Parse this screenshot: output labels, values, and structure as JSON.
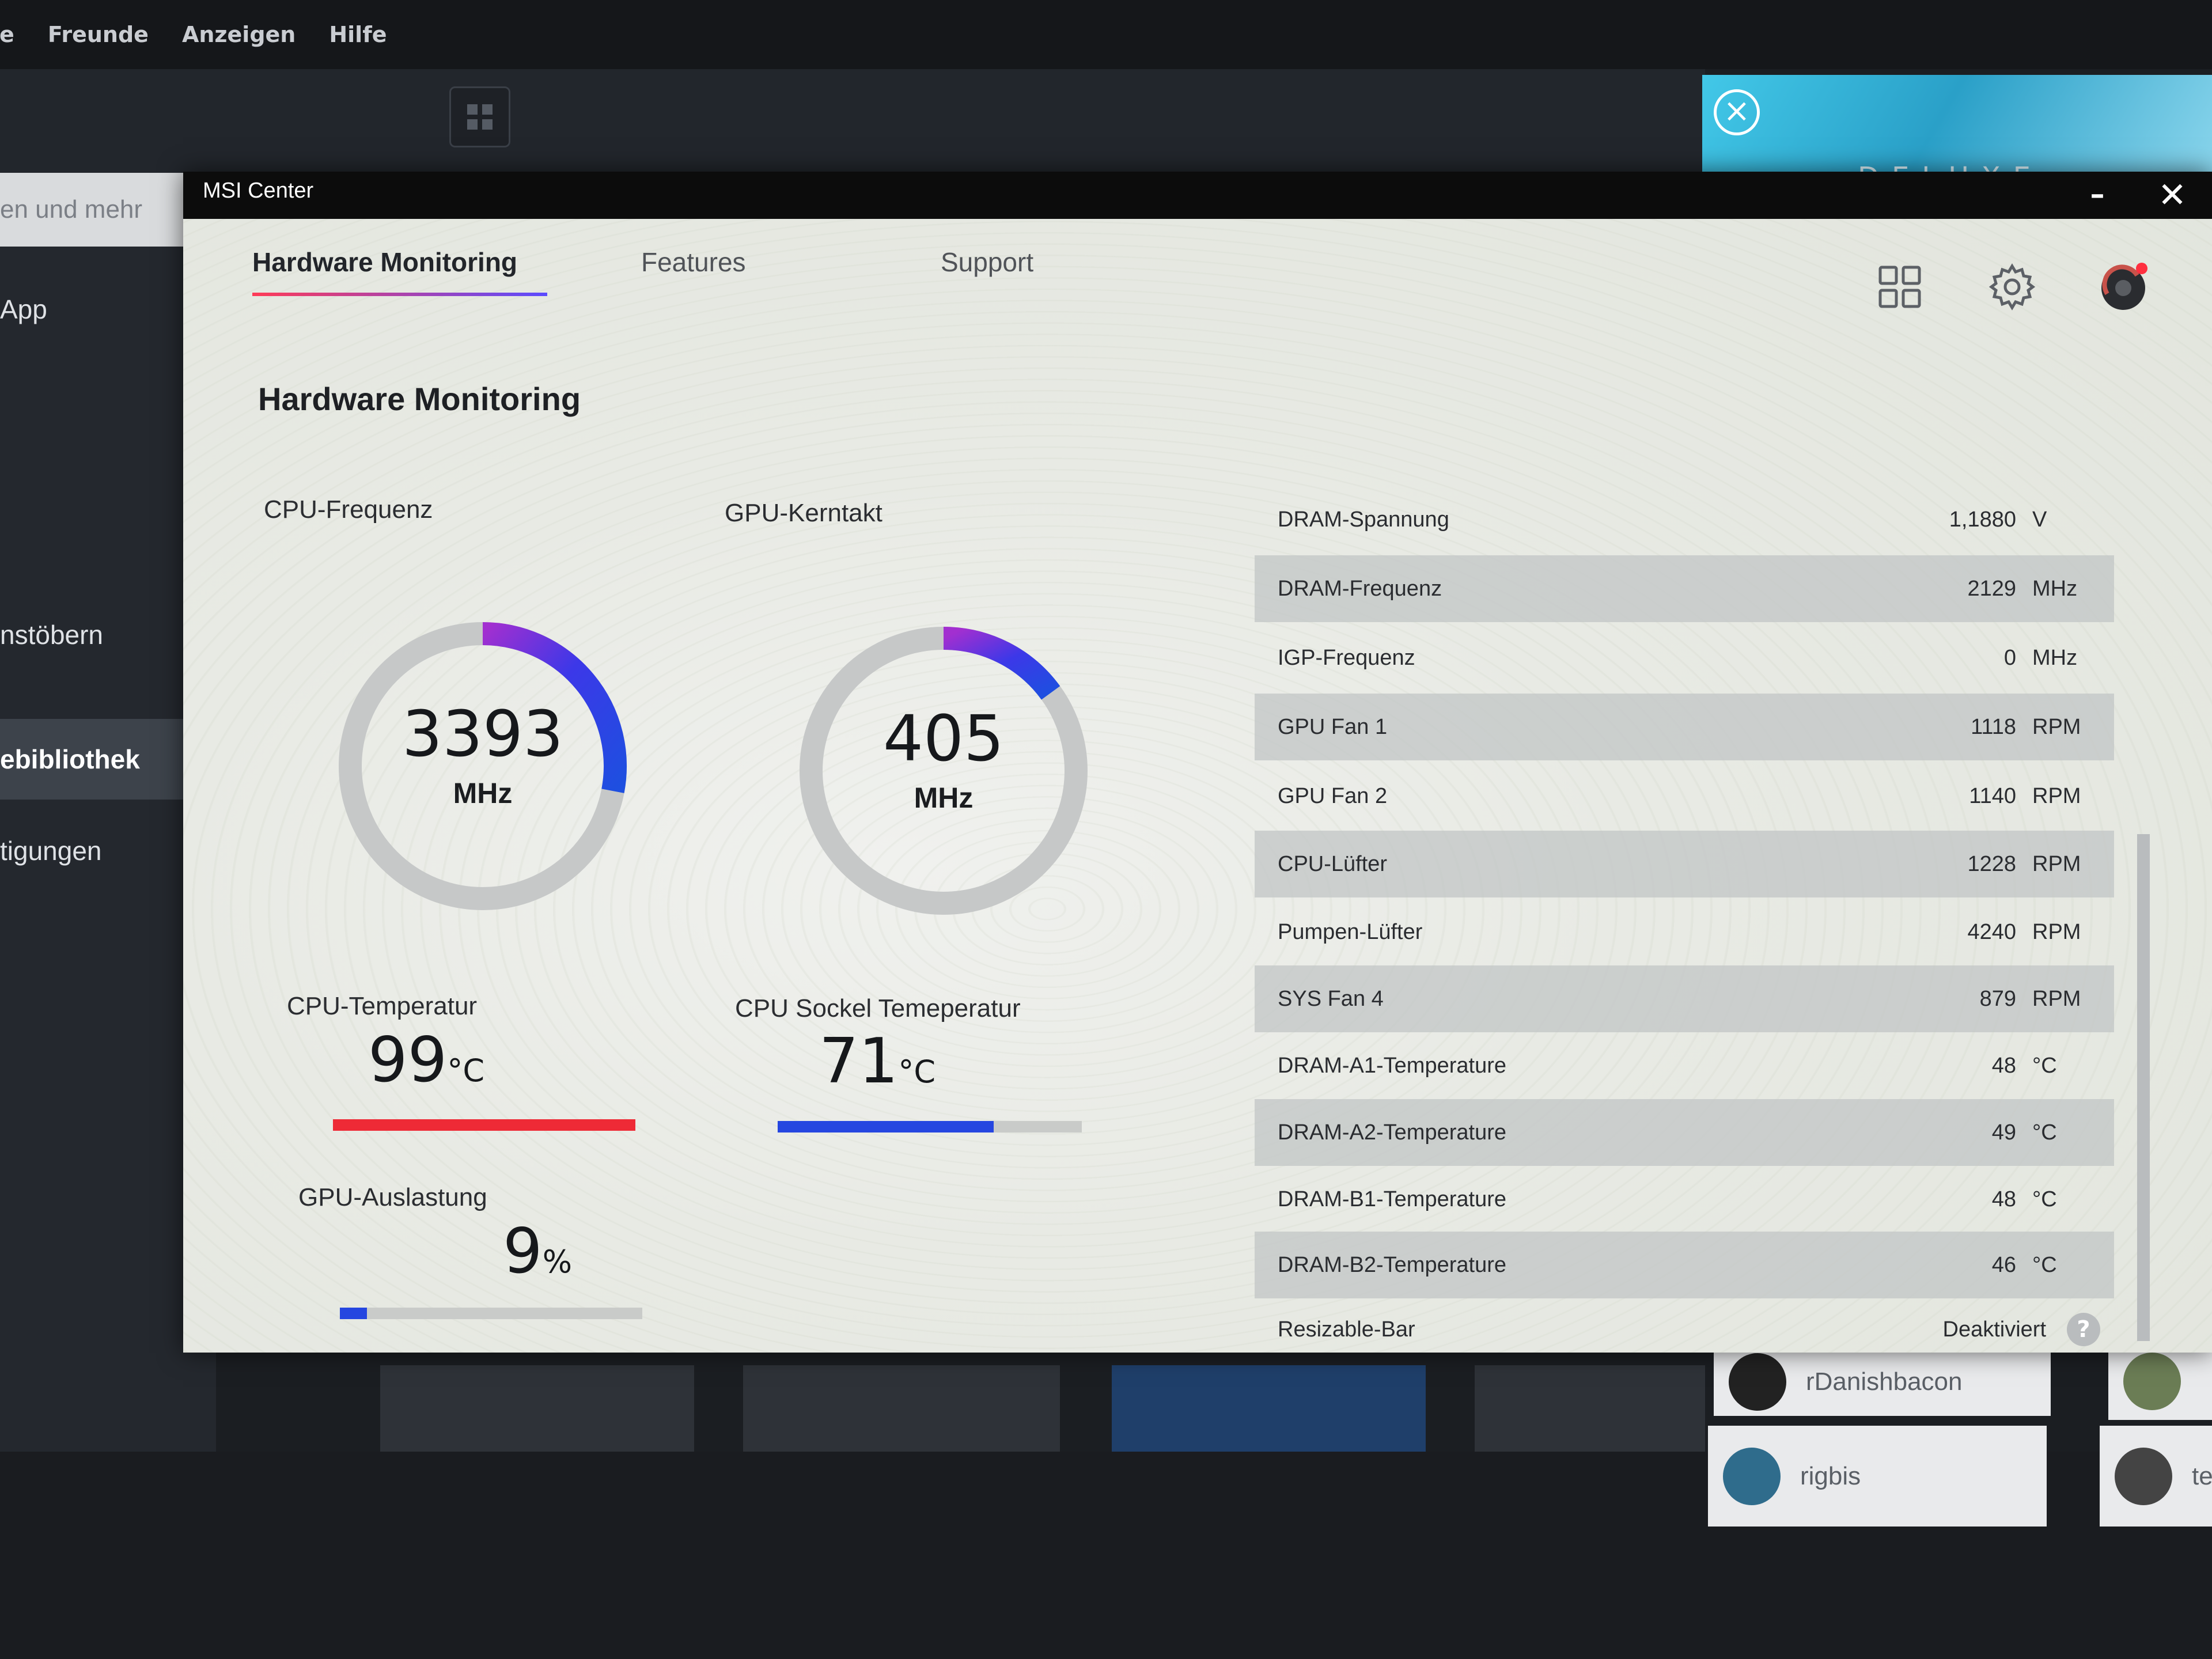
{
  "background_app": {
    "menu": [
      "le",
      "Freunde",
      "Anzeigen",
      "Hilfe"
    ],
    "search_text": "en und mehr",
    "sidebar": [
      "App",
      "nstöbern",
      "ebibliothek",
      "tigungen"
    ],
    "active_sidebar": "ebibliothek",
    "banner_text": "DELUXE EDITION",
    "friends": [
      "rDanishbacon",
      "rigbis",
      "te"
    ]
  },
  "window": {
    "title": "MSI Center",
    "minimize": "–",
    "close": "✕"
  },
  "tabs": [
    {
      "label": "Hardware Monitoring",
      "active": true
    },
    {
      "label": "Features",
      "active": false
    },
    {
      "label": "Support",
      "active": false
    }
  ],
  "header_icons": [
    "grid-icon",
    "gear-icon",
    "profile-icon"
  ],
  "accent_colors": {
    "red": "#ee2a36",
    "blue": "#2546e0",
    "purple": "#8a32d6",
    "notification": "#ff2f3f"
  },
  "page_title": "Hardware Monitoring",
  "gauges": {
    "cpu_freq": {
      "label": "CPU-Frequenz",
      "value": "3393",
      "unit": "MHz",
      "fill_fraction": 0.28
    },
    "gpu_clock": {
      "label": "GPU-Kerntakt",
      "value": "405",
      "unit": "MHz",
      "fill_fraction": 0.15
    }
  },
  "metrics": {
    "cpu_temp": {
      "label": "CPU-Temperatur",
      "value": "99",
      "unit": "°C",
      "bar_fraction": 1.0
    },
    "socket_temp": {
      "label": "CPU Sockel Temeperatur",
      "value": "71",
      "unit": "°C",
      "bar_fraction": 0.71
    },
    "gpu_load": {
      "label": "GPU-Auslastung",
      "value": "9",
      "unit": "%",
      "bar_fraction": 0.09
    }
  },
  "sensors": [
    {
      "name": "DRAM-Spannung",
      "value": "1,1880",
      "unit": "V"
    },
    {
      "name": "DRAM-Frequenz",
      "value": "2129",
      "unit": "MHz"
    },
    {
      "name": "IGP-Frequenz",
      "value": "0",
      "unit": "MHz"
    },
    {
      "name": "GPU Fan 1",
      "value": "1118",
      "unit": "RPM"
    },
    {
      "name": "GPU Fan 2",
      "value": "1140",
      "unit": "RPM"
    },
    {
      "name": "CPU-Lüfter",
      "value": "1228",
      "unit": "RPM"
    },
    {
      "name": "Pumpen-Lüfter",
      "value": "4240",
      "unit": "RPM"
    },
    {
      "name": "SYS Fan 4",
      "value": "879",
      "unit": "RPM"
    },
    {
      "name": "DRAM-A1-Temperature",
      "value": "48",
      "unit": "°C"
    },
    {
      "name": "DRAM-A2-Temperature",
      "value": "49",
      "unit": "°C"
    },
    {
      "name": "DRAM-B1-Temperature",
      "value": "48",
      "unit": "°C"
    },
    {
      "name": "DRAM-B2-Temperature",
      "value": "46",
      "unit": "°C"
    }
  ],
  "resizable_bar": {
    "name": "Resizable-Bar",
    "value": "Deaktiviert",
    "help": "?"
  }
}
